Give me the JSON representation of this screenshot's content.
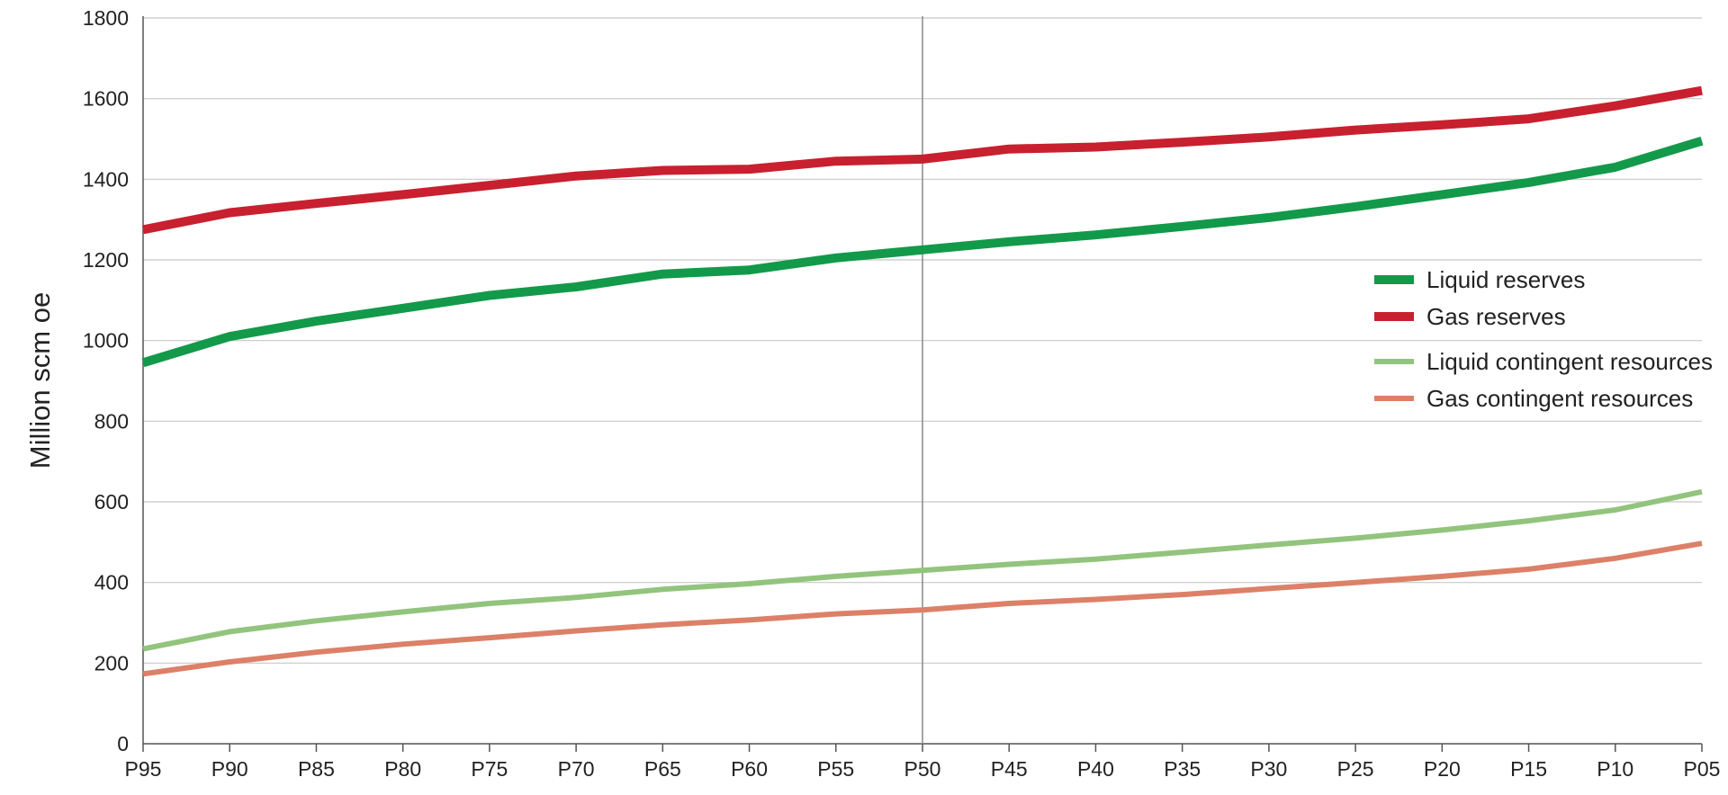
{
  "chart_data": {
    "type": "line",
    "title": "",
    "xlabel": "",
    "ylabel": "Million  scm oe",
    "ylim": [
      0,
      1800
    ],
    "yticks": [
      0,
      200,
      400,
      600,
      800,
      1000,
      1200,
      1400,
      1600,
      1800
    ],
    "categories": [
      "P95",
      "P90",
      "P85",
      "P80",
      "P75",
      "P70",
      "P65",
      "P60",
      "P55",
      "P50",
      "P45",
      "P40",
      "P35",
      "P30",
      "P25",
      "P20",
      "P15",
      "P10",
      "P05"
    ],
    "grid": "horizontal",
    "reference_line": "P50",
    "legend_position": "right",
    "series": [
      {
        "name": "Liquid reserves",
        "color": "#13994a",
        "style": "thick",
        "values": [
          945,
          1010,
          1048,
          1080,
          1112,
          1133,
          1165,
          1175,
          1205,
          1225,
          1245,
          1262,
          1283,
          1305,
          1332,
          1362,
          1392,
          1430,
          1495
        ]
      },
      {
        "name": "Gas reserves",
        "color": "#c8202f",
        "style": "thick",
        "values": [
          1275,
          1317,
          1340,
          1362,
          1385,
          1408,
          1422,
          1425,
          1445,
          1450,
          1475,
          1480,
          1492,
          1505,
          1522,
          1535,
          1550,
          1582,
          1620
        ]
      },
      {
        "name": "Liquid contingent resources",
        "color": "#93c47d",
        "style": "thin",
        "values": [
          235,
          278,
          305,
          327,
          348,
          363,
          383,
          397,
          415,
          430,
          445,
          458,
          475,
          493,
          510,
          530,
          553,
          580,
          625
        ]
      },
      {
        "name": "Gas contingent resources",
        "color": "#dd8068",
        "style": "thin",
        "values": [
          173,
          203,
          227,
          247,
          263,
          280,
          295,
          307,
          322,
          332,
          348,
          358,
          370,
          385,
          400,
          415,
          433,
          460,
          497
        ]
      }
    ]
  }
}
